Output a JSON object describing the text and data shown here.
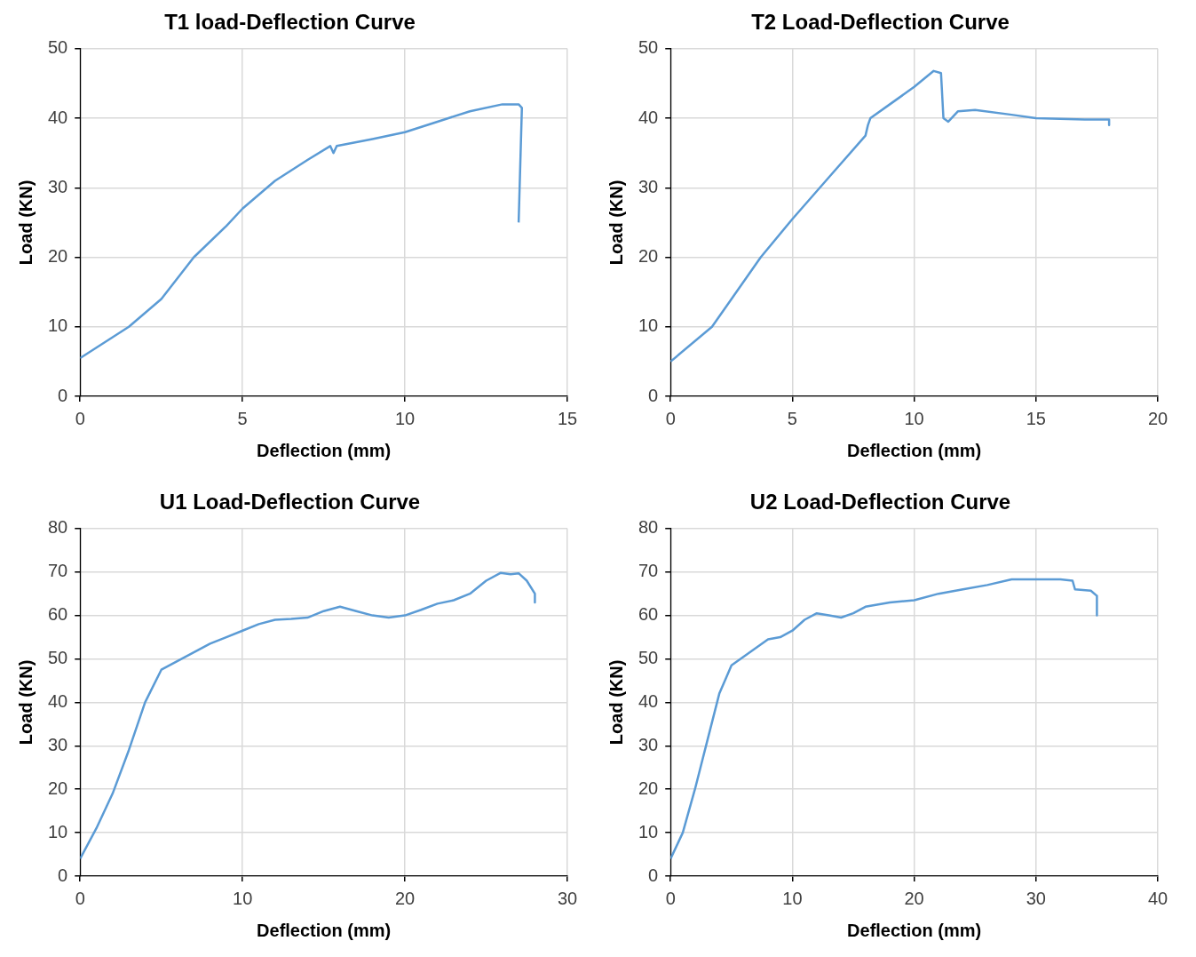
{
  "chart_data": [
    {
      "type": "line",
      "title": "T1 load-Deflection Curve",
      "xlabel": "Deflection (mm)",
      "ylabel": "Load (KN)",
      "xlim": [
        0,
        15
      ],
      "xticks": [
        0,
        5,
        10,
        15
      ],
      "ylim": [
        0,
        50
      ],
      "yticks": [
        0,
        10,
        20,
        30,
        40,
        50
      ],
      "grid": true,
      "series": [
        {
          "color": "#5b9bd5",
          "x": [
            0,
            1.5,
            2.5,
            3.5,
            4.5,
            5,
            6,
            7,
            7.7,
            7.8,
            7.9,
            9,
            10,
            11,
            12,
            13,
            13.5,
            13.6,
            13.5
          ],
          "values": [
            5.5,
            10,
            14,
            20,
            24.5,
            27,
            31,
            34,
            36,
            35,
            36,
            37,
            38,
            39.5,
            41,
            42,
            42,
            41.5,
            25
          ]
        }
      ]
    },
    {
      "type": "line",
      "title": "T2 Load-Deflection Curve",
      "xlabel": "Deflection (mm)",
      "ylabel": "Load (KN)",
      "xlim": [
        0,
        20
      ],
      "xticks": [
        0,
        5,
        10,
        15,
        20
      ],
      "ylim": [
        0,
        50
      ],
      "yticks": [
        0,
        10,
        20,
        30,
        40,
        50
      ],
      "grid": true,
      "series": [
        {
          "color": "#5b9bd5",
          "x": [
            0,
            1.7,
            2.5,
            3.7,
            5,
            6.5,
            8,
            8.1,
            8.2,
            9,
            10,
            10.8,
            11.1,
            11.2,
            11.4,
            11.8,
            12.5,
            14,
            15,
            17,
            18,
            18
          ],
          "values": [
            5,
            10,
            14,
            20,
            25.5,
            31.5,
            37.5,
            39,
            40,
            42,
            44.5,
            46.8,
            46.5,
            40,
            39.5,
            41,
            41.2,
            40.5,
            40,
            39.8,
            39.8,
            39
          ]
        }
      ]
    },
    {
      "type": "line",
      "title": "U1 Load-Deflection Curve",
      "xlabel": "Deflection (mm)",
      "ylabel": "Load (KN)",
      "xlim": [
        0,
        30
      ],
      "xticks": [
        0,
        10,
        20,
        30
      ],
      "ylim": [
        0,
        80
      ],
      "yticks": [
        0,
        10,
        20,
        30,
        40,
        50,
        60,
        70,
        80
      ],
      "grid": true,
      "series": [
        {
          "color": "#5b9bd5",
          "x": [
            0,
            1,
            2,
            3,
            4,
            5,
            6,
            7,
            8,
            9,
            10,
            11,
            12,
            13,
            14,
            15,
            16,
            17,
            18,
            19,
            20,
            21,
            22,
            23,
            24,
            25,
            25.9,
            26.5,
            27,
            27.5,
            28,
            28
          ],
          "values": [
            4,
            11,
            19,
            29,
            40,
            47.5,
            49.5,
            51.5,
            53.5,
            55,
            56.5,
            58,
            59,
            59.2,
            59.5,
            61,
            62,
            61,
            60,
            59.5,
            60,
            61.3,
            62.7,
            63.5,
            65,
            68,
            69.8,
            69.5,
            69.7,
            68,
            65,
            63
          ]
        }
      ]
    },
    {
      "type": "line",
      "title": "U2 Load-Deflection Curve",
      "xlabel": "Deflection (mm)",
      "ylabel": "Load (KN)",
      "xlim": [
        0,
        40
      ],
      "xticks": [
        0,
        10,
        20,
        30,
        40
      ],
      "ylim": [
        0,
        80
      ],
      "yticks": [
        0,
        10,
        20,
        30,
        40,
        50,
        60,
        70,
        80
      ],
      "grid": true,
      "series": [
        {
          "color": "#5b9bd5",
          "x": [
            0,
            1,
            2,
            3,
            4,
            5,
            6,
            7,
            8,
            9,
            10,
            11,
            12,
            13,
            14,
            15,
            16,
            18,
            20,
            22,
            24,
            26,
            28,
            30,
            32,
            33,
            33.2,
            34.5,
            35,
            35
          ],
          "values": [
            4,
            10,
            20,
            31,
            42,
            48.5,
            50.5,
            52.5,
            54.5,
            55,
            56.5,
            59,
            60.5,
            60,
            59.5,
            60.5,
            62,
            63,
            63.5,
            65,
            66,
            67,
            68.3,
            68.3,
            68.3,
            68,
            66,
            65.7,
            64.5,
            60
          ]
        }
      ]
    }
  ]
}
